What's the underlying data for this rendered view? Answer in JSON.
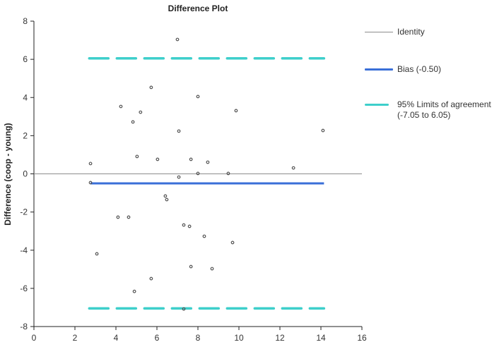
{
  "chart_data": {
    "type": "scatter",
    "title": "Difference Plot",
    "xlabel": "",
    "ylabel": "Difference (coop - young)",
    "xlim": [
      0,
      16
    ],
    "ylim": [
      -8,
      8
    ],
    "x_ticks": [
      0,
      2,
      4,
      6,
      8,
      10,
      12,
      14,
      16
    ],
    "y_ticks": [
      -8,
      -6,
      -4,
      -2,
      0,
      2,
      4,
      6,
      8
    ],
    "grid": false,
    "legend_position": "right",
    "colors": {
      "identity": "#8c8c8c",
      "bias": "#3a6fd8",
      "loa": "#3ecfcb",
      "points": "#555555"
    },
    "reference_lines": {
      "identity": {
        "label": "Identity",
        "y": 0
      },
      "bias": {
        "label": "Bias (-0.50)",
        "y": -0.5,
        "x_range": [
          2.76,
          14.15
        ]
      },
      "loa": {
        "label": "95% Limits of agreement",
        "label_line2": "(-7.05 to 6.05)",
        "lower": -7.05,
        "upper": 6.05,
        "x_range": [
          2.7,
          14.15
        ]
      }
    },
    "points": [
      {
        "x": 2.76,
        "y": 0.54
      },
      {
        "x": 2.76,
        "y": -0.46
      },
      {
        "x": 3.07,
        "y": -4.19
      },
      {
        "x": 4.1,
        "y": -2.27
      },
      {
        "x": 4.24,
        "y": 3.53
      },
      {
        "x": 4.62,
        "y": -2.27
      },
      {
        "x": 4.83,
        "y": 2.72
      },
      {
        "x": 4.9,
        "y": -6.16
      },
      {
        "x": 5.03,
        "y": 0.91
      },
      {
        "x": 5.2,
        "y": 3.23
      },
      {
        "x": 5.72,
        "y": 4.53
      },
      {
        "x": 5.72,
        "y": -5.49
      },
      {
        "x": 6.03,
        "y": 0.76
      },
      {
        "x": 6.41,
        "y": -1.16
      },
      {
        "x": 6.48,
        "y": -1.35
      },
      {
        "x": 7.0,
        "y": 7.04
      },
      {
        "x": 7.07,
        "y": 2.24
      },
      {
        "x": 7.07,
        "y": -0.17
      },
      {
        "x": 7.31,
        "y": -2.68
      },
      {
        "x": 7.31,
        "y": -7.08
      },
      {
        "x": 7.59,
        "y": -2.75
      },
      {
        "x": 7.66,
        "y": 0.76
      },
      {
        "x": 7.66,
        "y": -4.86
      },
      {
        "x": 8.0,
        "y": 4.05
      },
      {
        "x": 8.0,
        "y": 0.02
      },
      {
        "x": 8.31,
        "y": -3.27
      },
      {
        "x": 8.48,
        "y": 0.61
      },
      {
        "x": 8.69,
        "y": -4.97
      },
      {
        "x": 9.48,
        "y": 0.02
      },
      {
        "x": 9.69,
        "y": -3.6
      },
      {
        "x": 9.86,
        "y": 3.31
      },
      {
        "x": 12.66,
        "y": 0.31
      },
      {
        "x": 14.1,
        "y": 2.27
      }
    ]
  }
}
